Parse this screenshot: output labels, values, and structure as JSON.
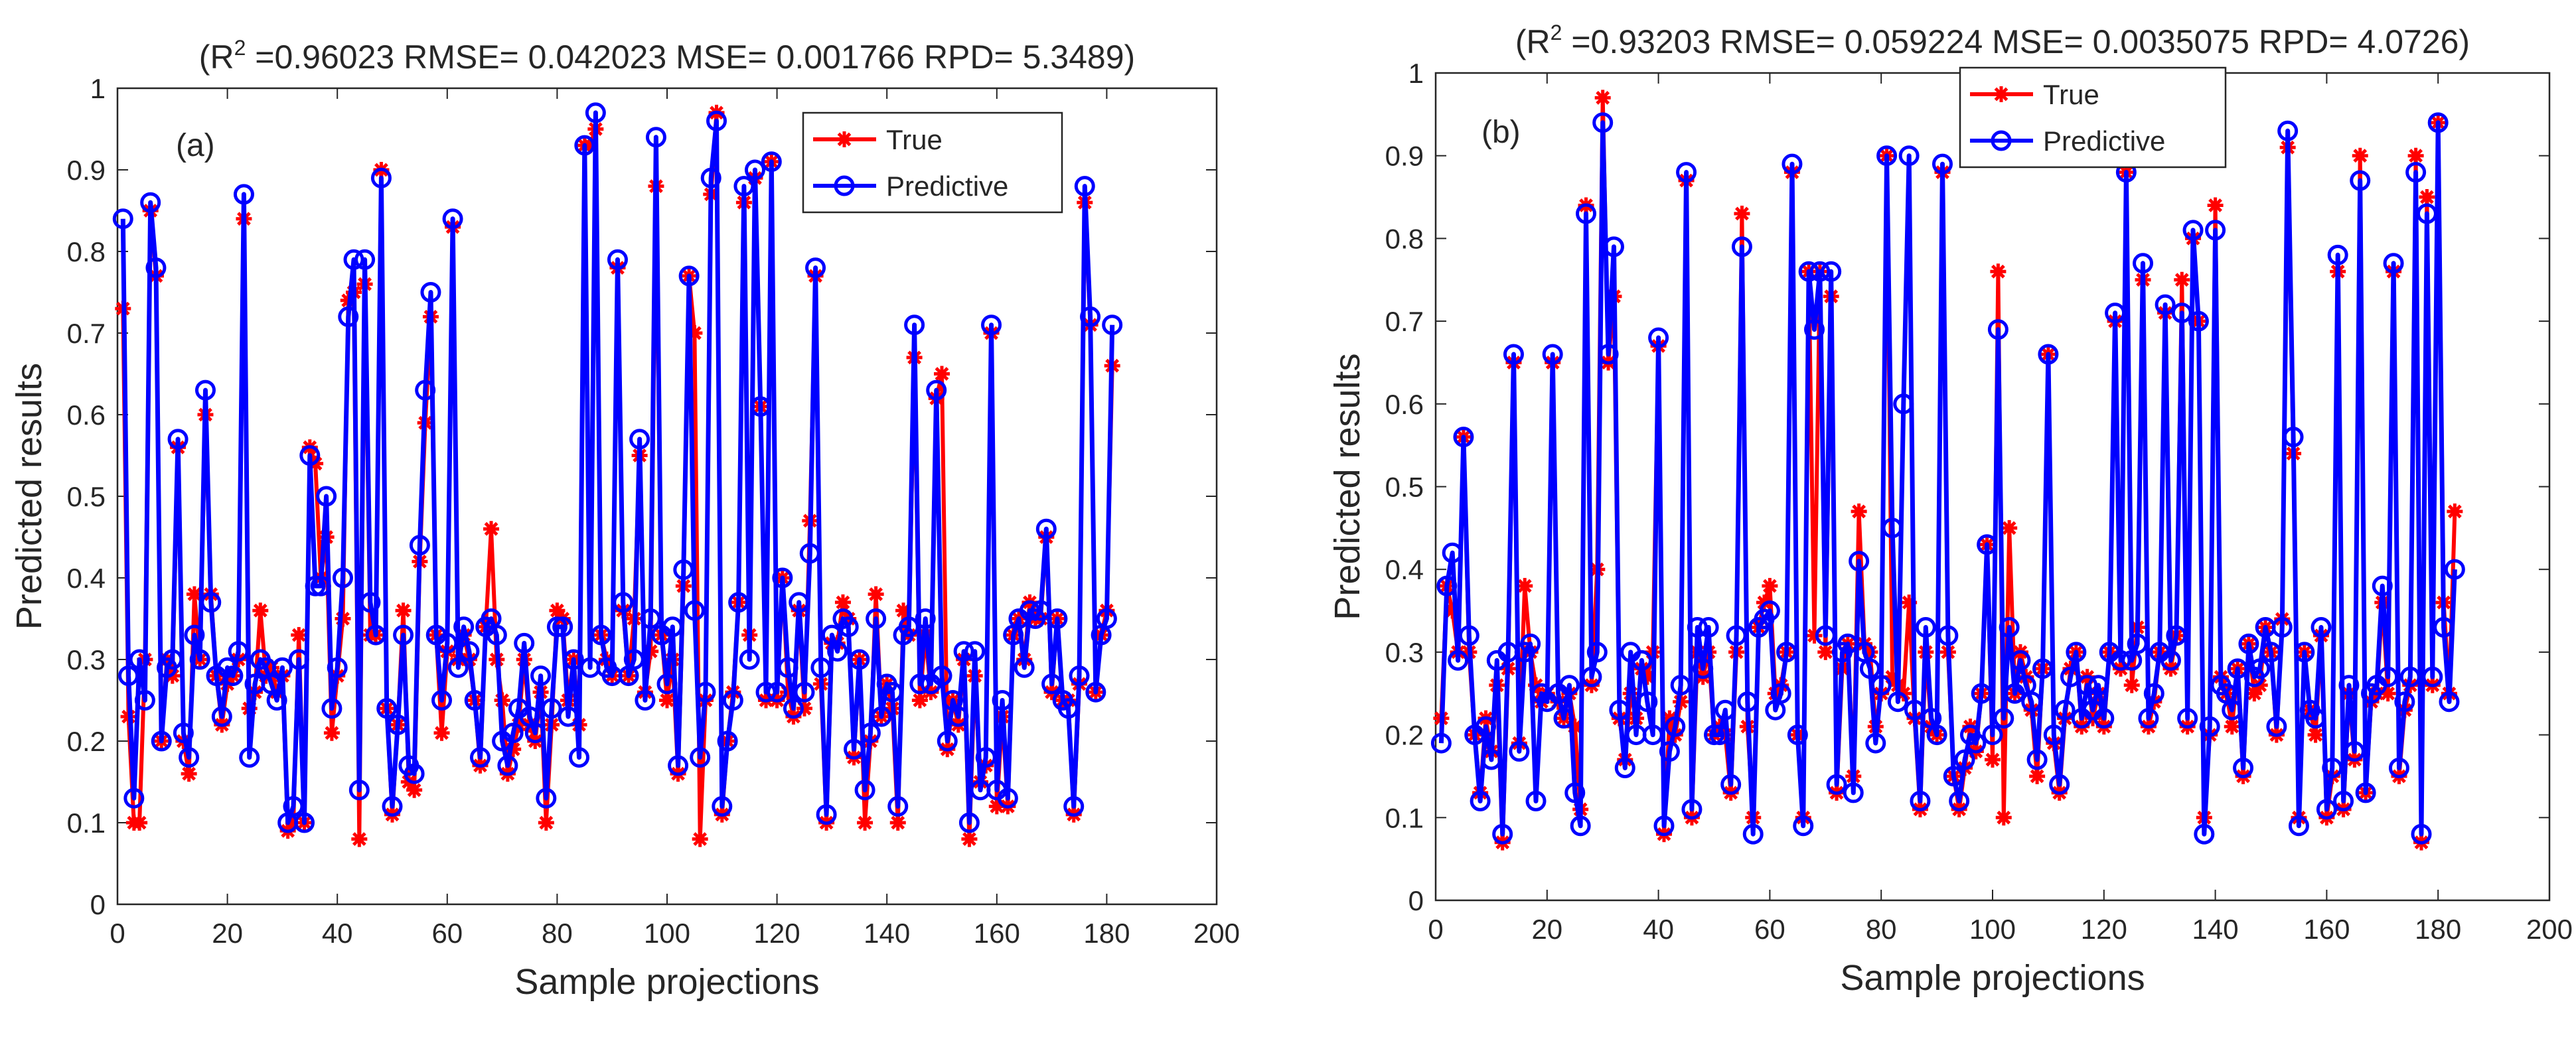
{
  "colors": {
    "true_series": "#ff0000",
    "pred_series": "#0000ff",
    "axes": "#262626",
    "background": "#ffffff"
  },
  "chart_data": [
    {
      "type": "line",
      "panel_label": "(a)",
      "title_prefix": "(R",
      "title_sup": "2",
      "title_rest": " =0.96023 RMSE= 0.042023 MSE= 0.001766 RPD= 5.3489)",
      "xlabel": "Sample projections",
      "ylabel": "Predicted results",
      "xlim": [
        0,
        200
      ],
      "ylim": [
        0,
        1
      ],
      "xticks": [
        "0",
        "20",
        "40",
        "60",
        "80",
        "100",
        "120",
        "140",
        "160",
        "180",
        "200"
      ],
      "yticks": [
        "0",
        "0.1",
        "0.2",
        "0.3",
        "0.4",
        "0.5",
        "0.6",
        "0.7",
        "0.8",
        "0.9",
        "1"
      ],
      "legend_position": "top-right",
      "series": [
        {
          "name": "True",
          "marker": "asterisk",
          "values": [
            0.73,
            0.23,
            0.1,
            0.1,
            0.3,
            0.85,
            0.77,
            0.2,
            0.3,
            0.28,
            0.56,
            0.2,
            0.16,
            0.38,
            0.3,
            0.6,
            0.38,
            0.28,
            0.22,
            0.27,
            0.28,
            0.3,
            0.84,
            0.24,
            0.26,
            0.36,
            0.28,
            0.29,
            0.26,
            0.28,
            0.09,
            0.1,
            0.33,
            0.1,
            0.56,
            0.54,
            0.4,
            0.45,
            0.21,
            0.28,
            0.35,
            0.74,
            0.75,
            0.08,
            0.76,
            0.33,
            0.33,
            0.9,
            0.24,
            0.11,
            0.22,
            0.36,
            0.15,
            0.14,
            0.42,
            0.59,
            0.72,
            0.33,
            0.21,
            0.31,
            0.83,
            0.3,
            0.33,
            0.3,
            0.25,
            0.17,
            0.34,
            0.46,
            0.3,
            0.25,
            0.16,
            0.19,
            0.22,
            0.3,
            0.22,
            0.2,
            0.26,
            0.1,
            0.22,
            0.36,
            0.35,
            0.25,
            0.3,
            0.22,
            0.93,
            0.93,
            0.95,
            0.33,
            0.3,
            0.28,
            0.78,
            0.36,
            0.28,
            0.35,
            0.55,
            0.26,
            0.31,
            0.88,
            0.33,
            0.25,
            0.3,
            0.16,
            0.39,
            0.77,
            0.7,
            0.08,
            0.25,
            0.87,
            0.97,
            0.11,
            0.2,
            0.26,
            0.37,
            0.86,
            0.33,
            0.89,
            0.61,
            0.25,
            0.91,
            0.25,
            0.4,
            0.26,
            0.23,
            0.36,
            0.24,
            0.47,
            0.77,
            0.27,
            0.1,
            0.32,
            0.32,
            0.37,
            0.35,
            0.18,
            0.3,
            0.1,
            0.2,
            0.38,
            0.23,
            0.27,
            0.24,
            0.1,
            0.36,
            0.33,
            0.67,
            0.25,
            0.33,
            0.26,
            0.62,
            0.65,
            0.19,
            0.25,
            0.22,
            0.3,
            0.08,
            0.28,
            0.15,
            0.17,
            0.7,
            0.12,
            0.23,
            0.12,
            0.33,
            0.35,
            0.3,
            0.37,
            0.35,
            0.35,
            0.45,
            0.26,
            0.35,
            0.25,
            0.25,
            0.11,
            0.27,
            0.86,
            0.71,
            0.26,
            0.33,
            0.36,
            0.66
          ]
        },
        {
          "name": "Predictive",
          "marker": "circle",
          "values": [
            0.84,
            0.28,
            0.13,
            0.3,
            0.25,
            0.86,
            0.78,
            0.2,
            0.29,
            0.3,
            0.57,
            0.21,
            0.18,
            0.33,
            0.3,
            0.63,
            0.37,
            0.28,
            0.23,
            0.29,
            0.28,
            0.31,
            0.87,
            0.18,
            0.27,
            0.3,
            0.29,
            0.27,
            0.25,
            0.29,
            0.1,
            0.12,
            0.3,
            0.1,
            0.55,
            0.39,
            0.39,
            0.5,
            0.24,
            0.29,
            0.4,
            0.72,
            0.79,
            0.14,
            0.79,
            0.37,
            0.33,
            0.89,
            0.24,
            0.12,
            0.22,
            0.33,
            0.17,
            0.16,
            0.44,
            0.63,
            0.75,
            0.33,
            0.25,
            0.32,
            0.84,
            0.29,
            0.34,
            0.31,
            0.25,
            0.18,
            0.34,
            0.35,
            0.33,
            0.2,
            0.17,
            0.21,
            0.24,
            0.32,
            0.23,
            0.21,
            0.28,
            0.13,
            0.24,
            0.34,
            0.34,
            0.23,
            0.3,
            0.18,
            0.93,
            0.29,
            0.97,
            0.33,
            0.29,
            0.28,
            0.79,
            0.37,
            0.28,
            0.3,
            0.57,
            0.25,
            0.35,
            0.94,
            0.33,
            0.27,
            0.34,
            0.17,
            0.41,
            0.77,
            0.36,
            0.18,
            0.26,
            0.89,
            0.96,
            0.12,
            0.2,
            0.25,
            0.37,
            0.88,
            0.3,
            0.9,
            0.61,
            0.26,
            0.91,
            0.26,
            0.4,
            0.29,
            0.24,
            0.37,
            0.26,
            0.43,
            0.78,
            0.29,
            0.11,
            0.33,
            0.31,
            0.35,
            0.34,
            0.19,
            0.3,
            0.14,
            0.21,
            0.35,
            0.23,
            0.27,
            0.26,
            0.12,
            0.33,
            0.34,
            0.71,
            0.27,
            0.35,
            0.27,
            0.63,
            0.28,
            0.2,
            0.25,
            0.23,
            0.31,
            0.1,
            0.31,
            0.14,
            0.18,
            0.71,
            0.14,
            0.25,
            0.13,
            0.33,
            0.35,
            0.29,
            0.36,
            0.35,
            0.36,
            0.46,
            0.27,
            0.35,
            0.25,
            0.24,
            0.12,
            0.28,
            0.88,
            0.72,
            0.26,
            0.33,
            0.35,
            0.71
          ]
        }
      ]
    },
    {
      "type": "line",
      "panel_label": "(b)",
      "title_prefix": "(R",
      "title_sup": "2",
      "title_rest": " =0.93203 RMSE= 0.059224 MSE= 0.0035075 RPD= 4.0726)",
      "xlabel": "Sample projections",
      "ylabel": "Predicted results",
      "xlim": [
        0,
        200
      ],
      "ylim": [
        0,
        1
      ],
      "xticks": [
        "0",
        "20",
        "40",
        "60",
        "80",
        "100",
        "120",
        "140",
        "160",
        "180",
        "200"
      ],
      "yticks": [
        "0",
        "0.1",
        "0.2",
        "0.3",
        "0.4",
        "0.5",
        "0.6",
        "0.7",
        "0.8",
        "0.9",
        "1"
      ],
      "legend_position": "top-center",
      "series": [
        {
          "name": "True",
          "marker": "asterisk",
          "values": [
            0.22,
            0.38,
            0.35,
            0.3,
            0.56,
            0.3,
            0.2,
            0.13,
            0.22,
            0.18,
            0.26,
            0.07,
            0.28,
            0.65,
            0.19,
            0.38,
            0.3,
            0.26,
            0.24,
            0.25,
            0.65,
            0.24,
            0.22,
            0.25,
            0.21,
            0.11,
            0.84,
            0.26,
            0.4,
            0.97,
            0.65,
            0.73,
            0.22,
            0.17,
            0.25,
            0.22,
            0.28,
            0.27,
            0.3,
            0.67,
            0.08,
            0.22,
            0.2,
            0.24,
            0.87,
            0.1,
            0.3,
            0.27,
            0.3,
            0.2,
            0.21,
            0.2,
            0.13,
            0.3,
            0.83,
            0.21,
            0.1,
            0.33,
            0.36,
            0.38,
            0.25,
            0.26,
            0.3,
            0.88,
            0.2,
            0.1,
            0.76,
            0.32,
            0.76,
            0.3,
            0.73,
            0.13,
            0.28,
            0.31,
            0.15,
            0.47,
            0.31,
            0.3,
            0.21,
            0.25,
            0.9,
            0.27,
            0.26,
            0.25,
            0.36,
            0.22,
            0.11,
            0.3,
            0.21,
            0.2,
            0.88,
            0.3,
            0.15,
            0.11,
            0.16,
            0.21,
            0.18,
            0.25,
            0.43,
            0.17,
            0.76,
            0.1,
            0.45,
            0.25,
            0.3,
            0.27,
            0.23,
            0.15,
            0.28,
            0.66,
            0.19,
            0.13,
            0.22,
            0.28,
            0.3,
            0.21,
            0.27,
            0.22,
            0.25,
            0.21,
            0.3,
            0.7,
            0.28,
            0.88,
            0.26,
            0.33,
            0.75,
            0.21,
            0.24,
            0.3,
            0.71,
            0.28,
            0.32,
            0.75,
            0.21,
            0.8,
            0.7,
            0.1,
            0.2,
            0.84,
            0.27,
            0.25,
            0.21,
            0.28,
            0.15,
            0.31,
            0.25,
            0.26,
            0.33,
            0.3,
            0.2,
            0.34,
            0.91,
            0.54,
            0.1,
            0.3,
            0.23,
            0.2,
            0.32,
            0.1,
            0.15,
            0.76,
            0.11,
            0.25,
            0.17,
            0.9,
            0.13,
            0.24,
            0.25,
            0.36,
            0.25,
            0.76,
            0.15,
            0.23,
            0.26,
            0.9,
            0.07,
            0.85,
            0.26,
            0.94,
            0.36,
            0.25,
            0.47
          ]
        },
        {
          "name": "Predictive",
          "marker": "circle",
          "values": [
            0.19,
            0.38,
            0.42,
            0.29,
            0.56,
            0.32,
            0.2,
            0.12,
            0.21,
            0.17,
            0.29,
            0.08,
            0.3,
            0.66,
            0.18,
            0.3,
            0.31,
            0.12,
            0.25,
            0.24,
            0.66,
            0.25,
            0.22,
            0.26,
            0.13,
            0.09,
            0.83,
            0.27,
            0.3,
            0.94,
            0.66,
            0.79,
            0.23,
            0.16,
            0.3,
            0.2,
            0.29,
            0.24,
            0.2,
            0.68,
            0.09,
            0.18,
            0.21,
            0.26,
            0.88,
            0.11,
            0.33,
            0.28,
            0.33,
            0.2,
            0.2,
            0.23,
            0.14,
            0.32,
            0.79,
            0.24,
            0.08,
            0.33,
            0.34,
            0.35,
            0.23,
            0.25,
            0.3,
            0.89,
            0.2,
            0.09,
            0.76,
            0.69,
            0.76,
            0.32,
            0.76,
            0.14,
            0.3,
            0.31,
            0.13,
            0.41,
            0.3,
            0.28,
            0.19,
            0.26,
            0.9,
            0.45,
            0.24,
            0.6,
            0.9,
            0.23,
            0.12,
            0.33,
            0.22,
            0.2,
            0.89,
            0.32,
            0.15,
            0.12,
            0.17,
            0.2,
            0.19,
            0.25,
            0.43,
            0.2,
            0.69,
            0.22,
            0.33,
            0.25,
            0.29,
            0.26,
            0.24,
            0.17,
            0.28,
            0.66,
            0.2,
            0.14,
            0.23,
            0.27,
            0.3,
            0.22,
            0.26,
            0.23,
            0.26,
            0.22,
            0.3,
            0.71,
            0.29,
            0.88,
            0.29,
            0.31,
            0.77,
            0.22,
            0.25,
            0.3,
            0.72,
            0.29,
            0.32,
            0.71,
            0.22,
            0.81,
            0.7,
            0.08,
            0.21,
            0.81,
            0.26,
            0.25,
            0.23,
            0.28,
            0.16,
            0.31,
            0.27,
            0.28,
            0.33,
            0.3,
            0.21,
            0.33,
            0.93,
            0.56,
            0.09,
            0.3,
            0.23,
            0.22,
            0.33,
            0.11,
            0.16,
            0.78,
            0.12,
            0.26,
            0.18,
            0.87,
            0.13,
            0.25,
            0.26,
            0.38,
            0.27,
            0.77,
            0.16,
            0.24,
            0.27,
            0.88,
            0.08,
            0.83,
            0.27,
            0.94,
            0.33,
            0.24,
            0.4
          ]
        }
      ]
    }
  ]
}
